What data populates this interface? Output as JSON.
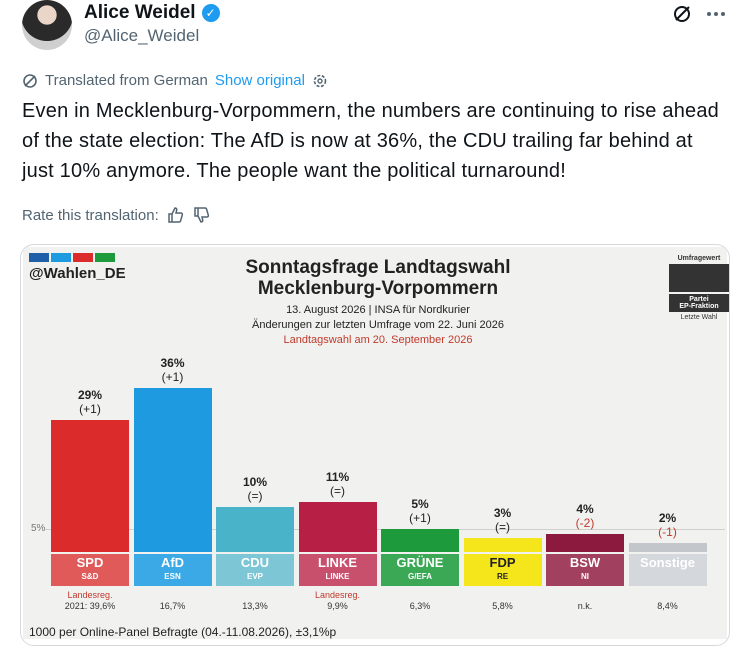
{
  "post": {
    "display_name": "Alice Weidel",
    "handle": "@Alice_Weidel",
    "verified_icon": "verified-badge-icon",
    "translated_label": "Translated from German",
    "show_original": "Show original",
    "text": "Even in Mecklenburg-Vorpommern, the numbers are continuing to rise ahead of the state election: The AfD is now at 36%, the CDU trailing far behind at just 10% anymore. The people want the political turnaround!",
    "rate_label": "Rate this translation:",
    "accent_color": "#1d9bf0"
  },
  "card": {
    "source_tag": "@Wahlen_DE",
    "legend": {
      "top": "Umfragewert",
      "mid": "Partei",
      "mid2": "EP-Fraktion",
      "bottom": "Letzte Wahl"
    },
    "footer": "1000 per Online-Panel Befragte (04.-11.08.2026), ±3,1%p"
  },
  "chart_data": {
    "type": "bar",
    "title": "Sonntagsfrage Landtagswahl Mecklenburg-Vorpommern",
    "title_line1": "Sonntagsfrage Landtagswahl",
    "title_line2": "Mecklenburg-Vorpommern",
    "subtitle1": "13. August 2026 | INSA für Nordkurier",
    "subtitle2": "Änderungen zur letzten Umfrage vom 22. Juni 2026",
    "subtitle3": "Landtagswahl am 20. September 2026",
    "reference_line_label": "5%",
    "ylim": [
      0,
      40
    ],
    "bars": [
      {
        "party": "SPD",
        "group": "S&D",
        "value": 29,
        "value_label": "29%",
        "change": "(+1)",
        "color": "#dc2b2b",
        "label_color": "#e05a5a",
        "gov": "Landesreg.",
        "prev": "2021: 39,6%"
      },
      {
        "party": "AfD",
        "group": "ESN",
        "value": 36,
        "value_label": "36%",
        "change": "(+1)",
        "color": "#1e9be0",
        "label_color": "#3aa9e5",
        "gov": "",
        "prev": "16,7%"
      },
      {
        "party": "CDU",
        "group": "EVP",
        "value": 10,
        "value_label": "10%",
        "change": "(=)",
        "color": "#49b3c9",
        "label_color": "#7cc6d6",
        "gov": "",
        "prev": "13,3%"
      },
      {
        "party": "LINKE",
        "group": "LINKE",
        "value": 11,
        "value_label": "11%",
        "change": "(=)",
        "color": "#b81f45",
        "label_color": "#c9506d",
        "gov": "Landesreg.",
        "prev": "9,9%"
      },
      {
        "party": "GRÜNE",
        "group": "G/EFA",
        "value": 5,
        "value_label": "5%",
        "change": "(+1)",
        "color": "#1d9a3c",
        "label_color": "#3ba856",
        "gov": "",
        "prev": "6,3%"
      },
      {
        "party": "FDP",
        "group": "RE",
        "value": 3,
        "value_label": "3%",
        "change": "(=)",
        "color": "#f5e61c",
        "label_color": "#f5e61c",
        "gov": "",
        "prev": "5,8%"
      },
      {
        "party": "BSW",
        "group": "NI",
        "value": 4,
        "value_label": "4%",
        "change": "(-2)",
        "color": "#8b1a3e",
        "label_color": "#a2405f",
        "gov": "",
        "prev": "n.k."
      },
      {
        "party": "Sonstige",
        "group": "",
        "value": 2,
        "value_label": "2%",
        "change": "(-1)",
        "color": "#c3c7cc",
        "label_color": "#d4d7db",
        "gov": "",
        "prev": "8,4%"
      }
    ]
  }
}
